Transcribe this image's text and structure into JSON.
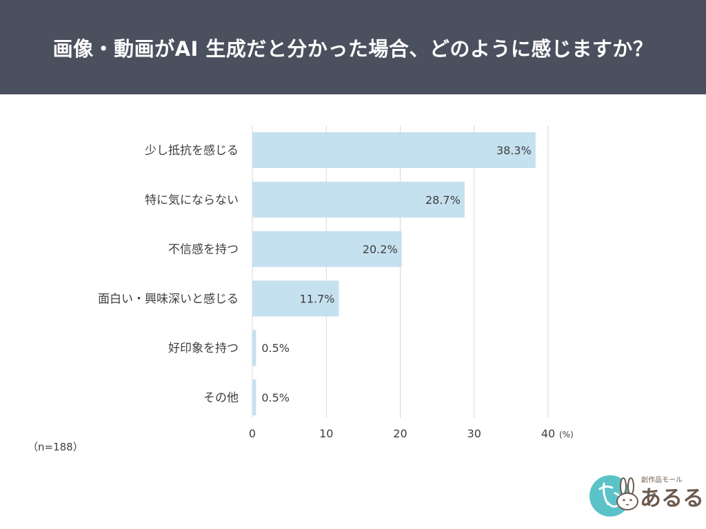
{
  "header": {
    "title": "画像・動画がAI 生成だと分かった場合、どのように感じますか？"
  },
  "chart_data": {
    "type": "bar",
    "orientation": "horizontal",
    "categories": [
      "少し抵抗を感じる",
      "特に気にならない",
      "不信感を持つ",
      "面白い・興味深いと感じる",
      "好印象を持つ",
      "その他"
    ],
    "values": [
      38.3,
      28.7,
      20.2,
      11.7,
      0.5,
      0.5
    ],
    "value_labels": [
      "38.3%",
      "28.7%",
      "20.2%",
      "11.7%",
      "0.5%",
      "0.5%"
    ],
    "xlim": [
      0,
      40
    ],
    "xticks": [
      "0",
      "10",
      "20",
      "30",
      "40"
    ],
    "xunit": "(%)",
    "grid": true,
    "bar_color": "#c5e0ee",
    "grid_color": "#d7d7d7",
    "note": "（n=188）"
  },
  "logo": {
    "small_text": "創作品モール",
    "main_text": "あるる"
  }
}
